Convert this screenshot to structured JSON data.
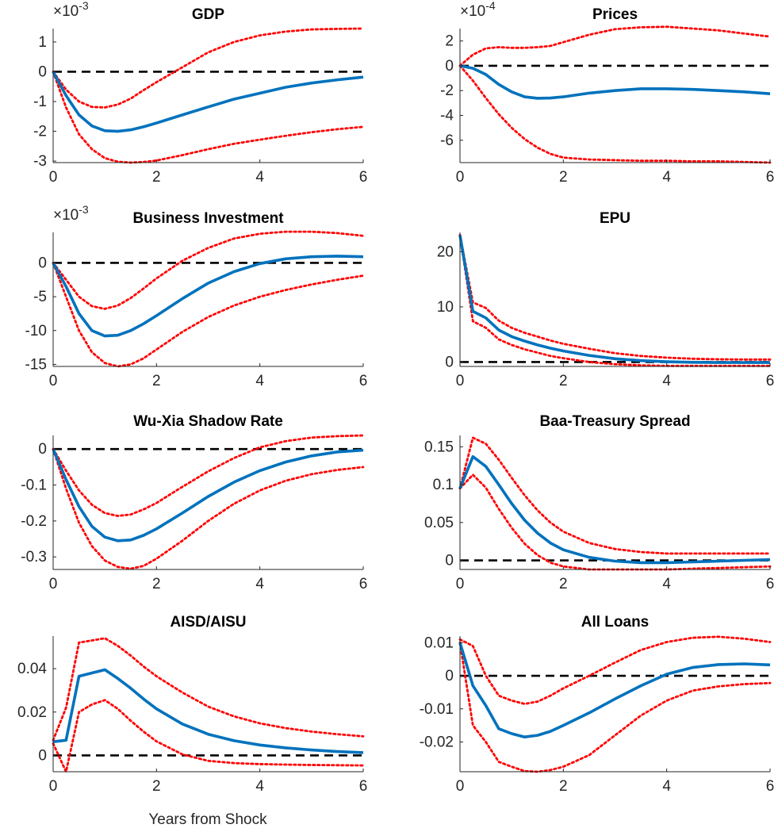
{
  "figure": {
    "xlabel": "Years from Shock"
  },
  "colors": {
    "response": "#0072BD",
    "bands": "#FF0000",
    "zero_line": "#000000",
    "axes": "#262626"
  },
  "chart_data": [
    {
      "type": "line",
      "title": "GDP",
      "exponent_label": "×10",
      "exponent_power": "-3",
      "xlim": [
        0,
        6
      ],
      "ylim": [
        -3.05,
        1.45
      ],
      "xticks": [
        0,
        2,
        4,
        6
      ],
      "xtick_labels": [
        "0",
        "2",
        "4",
        "6"
      ],
      "yticks": [
        -3,
        -2,
        -1,
        0,
        1
      ],
      "ytick_labels": [
        "-3",
        "-2",
        "-1",
        "0",
        "1"
      ],
      "x": [
        0,
        0.25,
        0.5,
        0.75,
        1,
        1.25,
        1.5,
        1.75,
        2,
        2.5,
        3,
        3.5,
        4,
        4.5,
        5,
        5.5,
        6
      ],
      "series": [
        {
          "role": "response",
          "values": [
            0,
            -0.8,
            -1.45,
            -1.82,
            -1.98,
            -2.0,
            -1.95,
            -1.85,
            -1.72,
            -1.45,
            -1.18,
            -0.92,
            -0.72,
            -0.52,
            -0.38,
            -0.27,
            -0.18
          ]
        },
        {
          "role": "upper-band",
          "values": [
            0,
            -0.6,
            -1.0,
            -1.18,
            -1.2,
            -1.1,
            -0.9,
            -0.62,
            -0.35,
            0.15,
            0.65,
            1.0,
            1.22,
            1.35,
            1.42,
            1.44,
            1.45
          ]
        },
        {
          "role": "lower-band",
          "values": [
            0,
            -1.2,
            -2.1,
            -2.6,
            -2.9,
            -3.02,
            -3.05,
            -3.03,
            -2.98,
            -2.8,
            -2.6,
            -2.42,
            -2.28,
            -2.15,
            -2.03,
            -1.93,
            -1.85
          ]
        }
      ]
    },
    {
      "type": "line",
      "title": "Prices",
      "exponent_label": "×10",
      "exponent_power": "-4",
      "xlim": [
        0,
        6
      ],
      "ylim": [
        -7.8,
        3.0
      ],
      "xticks": [
        0,
        2,
        4,
        6
      ],
      "xtick_labels": [
        "0",
        "2",
        "4",
        "6"
      ],
      "yticks": [
        -6,
        -4,
        -2,
        0,
        2
      ],
      "ytick_labels": [
        "-6",
        "-4",
        "-2",
        "0",
        "2"
      ],
      "x": [
        0,
        0.25,
        0.5,
        0.75,
        1,
        1.25,
        1.5,
        1.75,
        2,
        2.5,
        3,
        3.5,
        4,
        4.5,
        5,
        5.5,
        6
      ],
      "series": [
        {
          "role": "response",
          "values": [
            0,
            -0.2,
            -0.7,
            -1.5,
            -2.1,
            -2.5,
            -2.62,
            -2.6,
            -2.5,
            -2.2,
            -2.0,
            -1.85,
            -1.85,
            -1.9,
            -2.0,
            -2.1,
            -2.25
          ]
        },
        {
          "role": "upper-band",
          "values": [
            0,
            0.9,
            1.4,
            1.5,
            1.45,
            1.45,
            1.5,
            1.6,
            1.9,
            2.5,
            2.95,
            3.1,
            3.15,
            3.0,
            2.85,
            2.6,
            2.35
          ]
        },
        {
          "role": "lower-band",
          "values": [
            0,
            -1.2,
            -2.6,
            -3.9,
            -5.0,
            -5.9,
            -6.6,
            -7.1,
            -7.4,
            -7.55,
            -7.6,
            -7.65,
            -7.65,
            -7.7,
            -7.7,
            -7.75,
            -7.8
          ]
        }
      ]
    },
    {
      "type": "line",
      "title": "Business Investment",
      "exponent_label": "×10",
      "exponent_power": "-3",
      "xlim": [
        0,
        6
      ],
      "ylim": [
        -15.3,
        4.5
      ],
      "xticks": [
        0,
        2,
        4,
        6
      ],
      "xtick_labels": [
        "0",
        "2",
        "4",
        "6"
      ],
      "yticks": [
        -15,
        -10,
        -5,
        0
      ],
      "ytick_labels": [
        "-15",
        "-10",
        "-5",
        "0"
      ],
      "x": [
        0,
        0.25,
        0.5,
        0.75,
        1,
        1.25,
        1.5,
        1.75,
        2,
        2.5,
        3,
        3.5,
        4,
        4.5,
        5,
        5.5,
        6
      ],
      "series": [
        {
          "role": "response",
          "values": [
            0,
            -3.5,
            -7.5,
            -10.0,
            -10.8,
            -10.7,
            -10.0,
            -9.0,
            -7.8,
            -5.3,
            -3.0,
            -1.3,
            -0.1,
            0.6,
            0.9,
            1.0,
            0.9
          ]
        },
        {
          "role": "upper-band",
          "values": [
            0,
            -2.5,
            -5.0,
            -6.4,
            -6.8,
            -6.3,
            -5.2,
            -3.8,
            -2.3,
            0.3,
            2.2,
            3.6,
            4.3,
            4.6,
            4.6,
            4.4,
            4.0
          ]
        },
        {
          "role": "lower-band",
          "values": [
            0,
            -5.0,
            -10.0,
            -13.2,
            -14.8,
            -15.3,
            -15.0,
            -14.1,
            -12.8,
            -10.2,
            -8.0,
            -6.3,
            -5.0,
            -4.0,
            -3.2,
            -2.5,
            -1.9
          ]
        }
      ]
    },
    {
      "type": "line",
      "title": "EPU",
      "xlim": [
        0,
        6
      ],
      "ylim": [
        -0.8,
        23.5
      ],
      "xticks": [
        0,
        2,
        4,
        6
      ],
      "xtick_labels": [
        "0",
        "2",
        "4",
        "6"
      ],
      "yticks": [
        0,
        10,
        20
      ],
      "ytick_labels": [
        "0",
        "10",
        "20"
      ],
      "x": [
        0,
        0.25,
        0.5,
        0.75,
        1,
        1.25,
        1.5,
        1.75,
        2,
        2.5,
        3,
        3.5,
        4,
        4.5,
        5,
        5.5,
        6
      ],
      "series": [
        {
          "role": "response",
          "values": [
            23,
            9.2,
            8.0,
            5.8,
            4.6,
            3.8,
            3.1,
            2.5,
            2.0,
            1.2,
            0.6,
            0.25,
            0.05,
            -0.05,
            -0.1,
            -0.1,
            -0.1
          ]
        },
        {
          "role": "upper-band",
          "values": [
            23,
            10.8,
            9.8,
            7.5,
            6.2,
            5.3,
            4.6,
            3.9,
            3.3,
            2.4,
            1.6,
            1.1,
            0.8,
            0.6,
            0.5,
            0.45,
            0.45
          ]
        },
        {
          "role": "lower-band",
          "values": [
            23,
            7.4,
            6.2,
            4.1,
            3.1,
            2.3,
            1.7,
            1.1,
            0.7,
            0.0,
            -0.4,
            -0.6,
            -0.7,
            -0.7,
            -0.7,
            -0.7,
            -0.7
          ]
        }
      ]
    },
    {
      "type": "line",
      "title": "Wu-Xia Shadow Rate",
      "xlim": [
        0,
        6
      ],
      "ylim": [
        -0.335,
        0.038
      ],
      "xticks": [
        0,
        2,
        4,
        6
      ],
      "xtick_labels": [
        "0",
        "2",
        "4",
        "6"
      ],
      "yticks": [
        -0.3,
        -0.2,
        -0.1,
        0
      ],
      "ytick_labels": [
        "-0.3",
        "-0.2",
        "-0.1",
        "0"
      ],
      "x": [
        0,
        0.25,
        0.5,
        0.75,
        1,
        1.25,
        1.5,
        1.75,
        2,
        2.5,
        3,
        3.5,
        4,
        4.5,
        5,
        5.5,
        6
      ],
      "series": [
        {
          "role": "response",
          "values": [
            0,
            -0.085,
            -0.16,
            -0.215,
            -0.245,
            -0.255,
            -0.253,
            -0.24,
            -0.222,
            -0.178,
            -0.132,
            -0.092,
            -0.06,
            -0.036,
            -0.019,
            -0.008,
            -0.003
          ]
        },
        {
          "role": "upper-band",
          "values": [
            0,
            -0.06,
            -0.115,
            -0.155,
            -0.178,
            -0.186,
            -0.182,
            -0.168,
            -0.15,
            -0.105,
            -0.062,
            -0.025,
            0.005,
            0.022,
            0.032,
            0.036,
            0.038
          ]
        },
        {
          "role": "lower-band",
          "values": [
            0,
            -0.11,
            -0.205,
            -0.27,
            -0.31,
            -0.328,
            -0.333,
            -0.325,
            -0.305,
            -0.255,
            -0.2,
            -0.152,
            -0.115,
            -0.088,
            -0.07,
            -0.058,
            -0.05
          ]
        }
      ]
    },
    {
      "type": "line",
      "title": "Baa-Treasury Spread",
      "xlim": [
        0,
        6
      ],
      "ylim": [
        -0.012,
        0.165
      ],
      "xticks": [
        0,
        2,
        4,
        6
      ],
      "xtick_labels": [
        "0",
        "2",
        "4",
        "6"
      ],
      "yticks": [
        0,
        0.05,
        0.1,
        0.15
      ],
      "ytick_labels": [
        "0",
        "0.05",
        "0.1",
        "0.15"
      ],
      "x": [
        0,
        0.25,
        0.5,
        0.75,
        1,
        1.25,
        1.5,
        1.75,
        2,
        2.5,
        3,
        3.5,
        4,
        4.5,
        5,
        5.5,
        6
      ],
      "series": [
        {
          "role": "response",
          "values": [
            0.095,
            0.137,
            0.124,
            0.1,
            0.075,
            0.053,
            0.036,
            0.023,
            0.014,
            0.004,
            -0.001,
            -0.003,
            -0.003,
            -0.002,
            -0.001,
            0,
            0.001
          ]
        },
        {
          "role": "upper-band",
          "values": [
            0.095,
            0.162,
            0.154,
            0.133,
            0.109,
            0.086,
            0.066,
            0.05,
            0.038,
            0.023,
            0.015,
            0.011,
            0.009,
            0.009,
            0.009,
            0.009,
            0.009
          ]
        },
        {
          "role": "lower-band",
          "values": [
            0.095,
            0.113,
            0.096,
            0.068,
            0.043,
            0.022,
            0.007,
            -0.003,
            -0.008,
            -0.012,
            -0.012,
            -0.012,
            -0.012,
            -0.011,
            -0.01,
            -0.009,
            -0.008
          ]
        }
      ]
    },
    {
      "type": "line",
      "title": "AISD/AISU",
      "xlim": [
        0,
        6
      ],
      "ylim": [
        -0.0075,
        0.055
      ],
      "xticks": [
        0,
        2,
        4,
        6
      ],
      "xtick_labels": [
        "0",
        "2",
        "4",
        "6"
      ],
      "yticks": [
        0,
        0.02,
        0.04
      ],
      "ytick_labels": [
        "0",
        "0.02",
        "0.04"
      ],
      "x": [
        0,
        0.25,
        0.5,
        0.75,
        1,
        1.25,
        1.5,
        1.75,
        2,
        2.5,
        3,
        3.5,
        4,
        4.5,
        5,
        5.5,
        6
      ],
      "series": [
        {
          "role": "response",
          "values": [
            0.0063,
            0.007,
            0.0365,
            0.038,
            0.0395,
            0.0355,
            0.031,
            0.026,
            0.0215,
            0.0145,
            0.0098,
            0.0068,
            0.0048,
            0.0035,
            0.0025,
            0.0018,
            0.0013
          ]
        },
        {
          "role": "upper-band",
          "values": [
            0.007,
            0.022,
            0.052,
            0.053,
            0.054,
            0.0505,
            0.046,
            0.041,
            0.0365,
            0.029,
            0.0225,
            0.018,
            0.0148,
            0.0126,
            0.011,
            0.0098,
            0.0088
          ]
        },
        {
          "role": "lower-band",
          "values": [
            0.0055,
            -0.0075,
            0.02,
            0.0235,
            0.0255,
            0.0215,
            0.016,
            0.011,
            0.0065,
            0.0005,
            -0.0025,
            -0.0035,
            -0.004,
            -0.0042,
            -0.0044,
            -0.0045,
            -0.0046
          ]
        }
      ]
    },
    {
      "type": "line",
      "title": "All Loans",
      "xlim": [
        0,
        6
      ],
      "ylim": [
        -0.029,
        0.012
      ],
      "xticks": [
        0,
        2,
        4,
        6
      ],
      "xtick_labels": [
        "0",
        "2",
        "4",
        "6"
      ],
      "yticks": [
        -0.02,
        -0.01,
        0,
        0.01
      ],
      "ytick_labels": [
        "-0.02",
        "-0.01",
        "0",
        "0.01"
      ],
      "x": [
        0,
        0.25,
        0.5,
        0.75,
        1,
        1.25,
        1.5,
        1.75,
        2,
        2.5,
        3,
        3.5,
        4,
        4.5,
        5,
        5.5,
        6
      ],
      "series": [
        {
          "role": "response",
          "values": [
            0.01,
            -0.003,
            -0.009,
            -0.016,
            -0.0175,
            -0.0185,
            -0.018,
            -0.0168,
            -0.015,
            -0.0112,
            -0.007,
            -0.003,
            0.0005,
            0.0025,
            0.0034,
            0.0036,
            0.0033
          ]
        },
        {
          "role": "upper-band",
          "values": [
            0.011,
            0.009,
            0.0,
            -0.006,
            -0.0075,
            -0.0085,
            -0.0078,
            -0.006,
            -0.0038,
            0.0,
            0.004,
            0.0078,
            0.0102,
            0.0115,
            0.0118,
            0.0112,
            0.0102
          ]
        },
        {
          "role": "lower-band",
          "values": [
            0.01,
            -0.015,
            -0.02,
            -0.026,
            -0.0275,
            -0.0288,
            -0.029,
            -0.0285,
            -0.0275,
            -0.024,
            -0.018,
            -0.012,
            -0.0075,
            -0.0045,
            -0.0032,
            -0.0025,
            -0.0022
          ]
        }
      ]
    }
  ]
}
